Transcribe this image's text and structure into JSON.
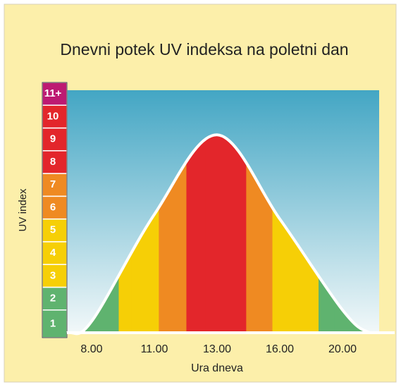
{
  "chart_data": {
    "type": "area",
    "title": "Dnevni potek UV indeksa na poletni dan",
    "xlabel": "Ura dneva",
    "ylabel": "UV index",
    "categories": [
      "8.00",
      "11.00",
      "13.00",
      "16.00",
      "20.00"
    ],
    "values": [
      0.5,
      5.2,
      8.7,
      5.0,
      1.0
    ],
    "ylim": [
      0,
      11
    ],
    "yticks": [
      1,
      2,
      3,
      4,
      5,
      6,
      7,
      8,
      9,
      10,
      {
        "value": 11,
        "label": "11+"
      }
    ],
    "level_colors": [
      "#5fb36f",
      "#5fb36f",
      "#f6cf06",
      "#f6cf06",
      "#f6cf06",
      "#ef8a22",
      "#ef8a22",
      "#e3262b",
      "#e3262b",
      "#e3262b",
      "#bd1a72"
    ],
    "line_color": "#ffffff"
  }
}
